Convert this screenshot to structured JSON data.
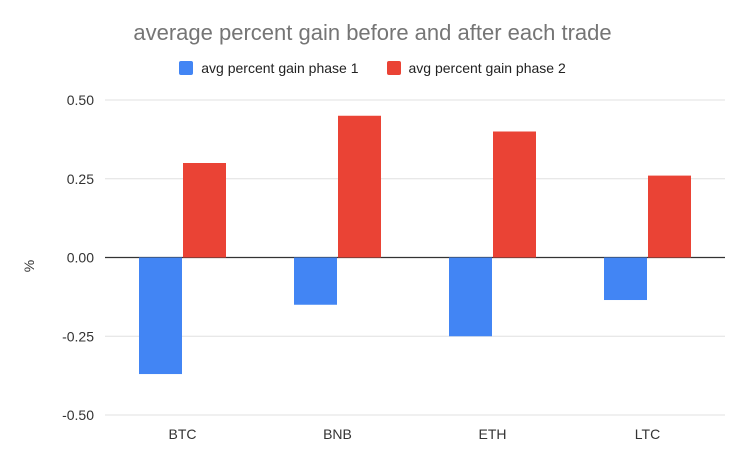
{
  "chart_data": {
    "type": "bar",
    "title": "average percent gain before and after each trade",
    "ylabel": "%",
    "xlabel": "",
    "categories": [
      "BTC",
      "BNB",
      "ETH",
      "LTC"
    ],
    "series": [
      {
        "name": "avg percent gain phase 1",
        "color": "#4285f4",
        "values": [
          -0.37,
          -0.15,
          -0.25,
          -0.135
        ]
      },
      {
        "name": "avg percent gain phase 2",
        "color": "#ea4335",
        "values": [
          0.3,
          0.45,
          0.4,
          0.26
        ]
      }
    ],
    "yticks": [
      "0.50",
      "0.25",
      "0.00",
      "-0.25",
      "-0.50"
    ],
    "ylim": [
      -0.5,
      0.5
    ],
    "grid": true,
    "legend_position": "top"
  }
}
